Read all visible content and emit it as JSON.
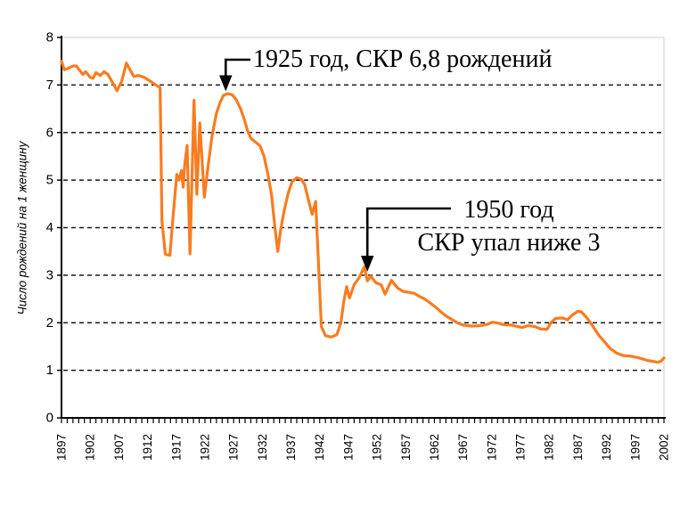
{
  "chart_data": {
    "type": "line",
    "title": "",
    "xlabel": "",
    "ylabel": "Число рождений на 1 женщину",
    "xlim": [
      1897,
      2002
    ],
    "ylim": [
      0,
      8
    ],
    "y_ticks": [
      0,
      1,
      2,
      3,
      4,
      5,
      6,
      7,
      8
    ],
    "x_ticks": [
      1897,
      1902,
      1907,
      1912,
      1917,
      1922,
      1927,
      1932,
      1937,
      1942,
      1947,
      1952,
      1957,
      1962,
      1967,
      1972,
      1977,
      1982,
      1987,
      1992,
      1997,
      2002
    ],
    "x_minor_tick_interval_years": 1,
    "grid": {
      "horizontal": true,
      "style": "dashed"
    },
    "legend": "none",
    "line_color": "#F97C20",
    "series": [
      {
        "name": "СКР",
        "points": [
          [
            1897,
            7.5
          ],
          [
            1897.5,
            7.32
          ],
          [
            1898.3,
            7.36
          ],
          [
            1899,
            7.4
          ],
          [
            1899.6,
            7.4
          ],
          [
            1900.7,
            7.22
          ],
          [
            1901.2,
            7.28
          ],
          [
            1902,
            7.16
          ],
          [
            1902.5,
            7.14
          ],
          [
            1903,
            7.26
          ],
          [
            1903.8,
            7.2
          ],
          [
            1904.4,
            7.28
          ],
          [
            1905.1,
            7.22
          ],
          [
            1905.9,
            7.05
          ],
          [
            1906.7,
            6.88
          ],
          [
            1907.5,
            7.08
          ],
          [
            1908.3,
            7.46
          ],
          [
            1908.8,
            7.35
          ],
          [
            1909.6,
            7.18
          ],
          [
            1910.4,
            7.2
          ],
          [
            1911.4,
            7.16
          ],
          [
            1912.2,
            7.1
          ],
          [
            1913.2,
            7.02
          ],
          [
            1914.2,
            6.94
          ],
          [
            1914.5,
            4.15
          ],
          [
            1915.1,
            3.44
          ],
          [
            1915.9,
            3.42
          ],
          [
            1916.5,
            4.3
          ],
          [
            1917.1,
            5.12
          ],
          [
            1917.5,
            5.0
          ],
          [
            1917.9,
            5.2
          ],
          [
            1918.2,
            4.85
          ],
          [
            1918.5,
            5.35
          ],
          [
            1918.9,
            5.73
          ],
          [
            1919.4,
            3.45
          ],
          [
            1920.1,
            6.68
          ],
          [
            1920.6,
            4.7
          ],
          [
            1921.1,
            6.2
          ],
          [
            1921.9,
            4.64
          ],
          [
            1922.5,
            5.25
          ],
          [
            1923.2,
            5.9
          ],
          [
            1924,
            6.4
          ],
          [
            1924.6,
            6.62
          ],
          [
            1925.2,
            6.78
          ],
          [
            1926,
            6.82
          ],
          [
            1926.8,
            6.79
          ],
          [
            1927.5,
            6.68
          ],
          [
            1928.2,
            6.5
          ],
          [
            1928.8,
            6.3
          ],
          [
            1929.4,
            6.05
          ],
          [
            1930,
            5.88
          ],
          [
            1930.8,
            5.8
          ],
          [
            1931.6,
            5.72
          ],
          [
            1932.3,
            5.5
          ],
          [
            1933,
            5.1
          ],
          [
            1933.6,
            4.7
          ],
          [
            1934.2,
            4.0
          ],
          [
            1934.7,
            3.5
          ],
          [
            1935.2,
            3.95
          ],
          [
            1935.8,
            4.35
          ],
          [
            1936.5,
            4.72
          ],
          [
            1937.2,
            4.97
          ],
          [
            1938,
            5.05
          ],
          [
            1938.8,
            5.02
          ],
          [
            1939.4,
            4.9
          ],
          [
            1940,
            4.6
          ],
          [
            1940.7,
            4.28
          ],
          [
            1941.3,
            4.55
          ],
          [
            1942.3,
            1.92
          ],
          [
            1943,
            1.73
          ],
          [
            1944,
            1.7
          ],
          [
            1945,
            1.75
          ],
          [
            1945.7,
            2.0
          ],
          [
            1946.2,
            2.45
          ],
          [
            1946.7,
            2.76
          ],
          [
            1947.2,
            2.52
          ],
          [
            1948,
            2.8
          ],
          [
            1948.9,
            2.95
          ],
          [
            1949.8,
            3.18
          ],
          [
            1950.3,
            2.88
          ],
          [
            1950.9,
            2.98
          ],
          [
            1951.8,
            2.84
          ],
          [
            1952.7,
            2.8
          ],
          [
            1953.4,
            2.6
          ],
          [
            1954.5,
            2.89
          ],
          [
            1955.6,
            2.73
          ],
          [
            1956.5,
            2.66
          ],
          [
            1957.5,
            2.64
          ],
          [
            1958.5,
            2.62
          ],
          [
            1959.3,
            2.56
          ],
          [
            1960.3,
            2.5
          ],
          [
            1961.2,
            2.42
          ],
          [
            1962.3,
            2.32
          ],
          [
            1963.4,
            2.2
          ],
          [
            1964.2,
            2.13
          ],
          [
            1965,
            2.07
          ],
          [
            1966,
            2.0
          ],
          [
            1967,
            1.95
          ],
          [
            1968.5,
            1.93
          ],
          [
            1970,
            1.94
          ],
          [
            1971.3,
            1.97
          ],
          [
            1972,
            2.01
          ],
          [
            1972.9,
            2.0
          ],
          [
            1974,
            1.96
          ],
          [
            1975.5,
            1.95
          ],
          [
            1976.5,
            1.92
          ],
          [
            1977.3,
            1.9
          ],
          [
            1978.3,
            1.94
          ],
          [
            1979.5,
            1.92
          ],
          [
            1980.5,
            1.87
          ],
          [
            1981.6,
            1.86
          ],
          [
            1982.3,
            2.0
          ],
          [
            1983.1,
            2.09
          ],
          [
            1984.4,
            2.1
          ],
          [
            1985.2,
            2.06
          ],
          [
            1986,
            2.16
          ],
          [
            1987,
            2.24
          ],
          [
            1987.6,
            2.23
          ],
          [
            1988.6,
            2.1
          ],
          [
            1989.6,
            1.93
          ],
          [
            1990.7,
            1.73
          ],
          [
            1991.8,
            1.58
          ],
          [
            1992.7,
            1.45
          ],
          [
            1993.8,
            1.36
          ],
          [
            1994.9,
            1.31
          ],
          [
            1996,
            1.3
          ],
          [
            1997,
            1.28
          ],
          [
            1998,
            1.25
          ],
          [
            1999,
            1.21
          ],
          [
            2000,
            1.19
          ],
          [
            2000.9,
            1.17
          ],
          [
            2001.5,
            1.19
          ],
          [
            2002,
            1.26
          ]
        ]
      }
    ],
    "annotations": [
      {
        "lines": [
          "1925 год, СКР 6,8 рождений"
        ],
        "target_year": 1925,
        "target_value": 6.8
      },
      {
        "lines": [
          "1950 год",
          "СКР упал ниже 3"
        ],
        "target_year": 1950,
        "target_value": 3.1
      }
    ]
  }
}
